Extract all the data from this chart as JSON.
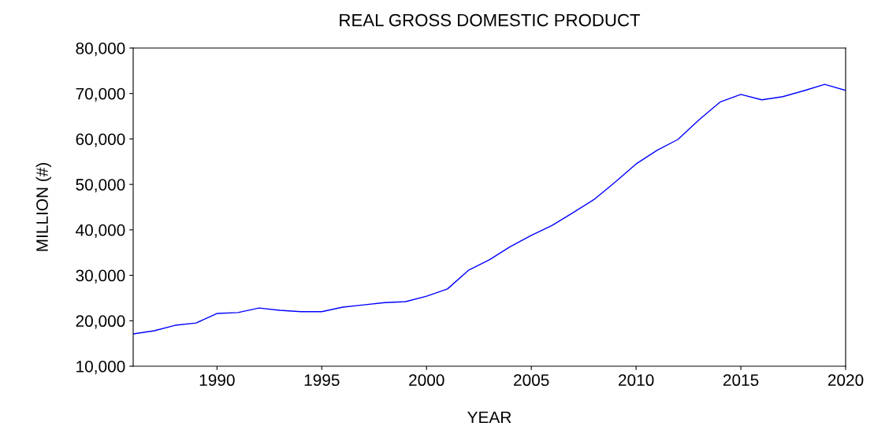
{
  "chart_data": {
    "type": "line",
    "title": "REAL GROSS DOMESTIC PRODUCT",
    "xlabel": "YEAR",
    "ylabel": "MILLION (#)",
    "x": [
      1986,
      1987,
      1988,
      1989,
      1990,
      1991,
      1992,
      1993,
      1994,
      1995,
      1996,
      1997,
      1998,
      1999,
      2000,
      2001,
      2002,
      2003,
      2004,
      2005,
      2006,
      2007,
      2008,
      2009,
      2010,
      2011,
      2012,
      2013,
      2014,
      2015,
      2016,
      2017,
      2018,
      2019,
      2020
    ],
    "series": [
      {
        "color": "#0000ff",
        "values": [
          17100,
          17800,
          19000,
          19500,
          21600,
          21800,
          22800,
          22300,
          22000,
          22000,
          23000,
          23500,
          24000,
          24200,
          25400,
          27000,
          31100,
          33400,
          36300,
          38800,
          41000,
          43800,
          46700,
          50500,
          54500,
          57500,
          59900,
          64200,
          68100,
          69800,
          68600,
          69300,
          70600,
          72000,
          70700
        ]
      }
    ],
    "xlim": [
      1986,
      2020
    ],
    "xticks": [
      1990,
      1995,
      2000,
      2005,
      2010,
      2015,
      2020
    ],
    "ylim": [
      10000,
      80000
    ],
    "yticks": [
      {
        "value": 10000,
        "label": "10,000"
      },
      {
        "value": 20000,
        "label": "20,000"
      },
      {
        "value": 30000,
        "label": "30,000"
      },
      {
        "value": 40000,
        "label": "40,000"
      },
      {
        "value": 50000,
        "label": "50,000"
      },
      {
        "value": 60000,
        "label": "60,000"
      },
      {
        "value": 70000,
        "label": "70,000"
      },
      {
        "value": 80000,
        "label": "80,000"
      }
    ],
    "grid": false,
    "marker": "none",
    "line_style": "solid"
  }
}
